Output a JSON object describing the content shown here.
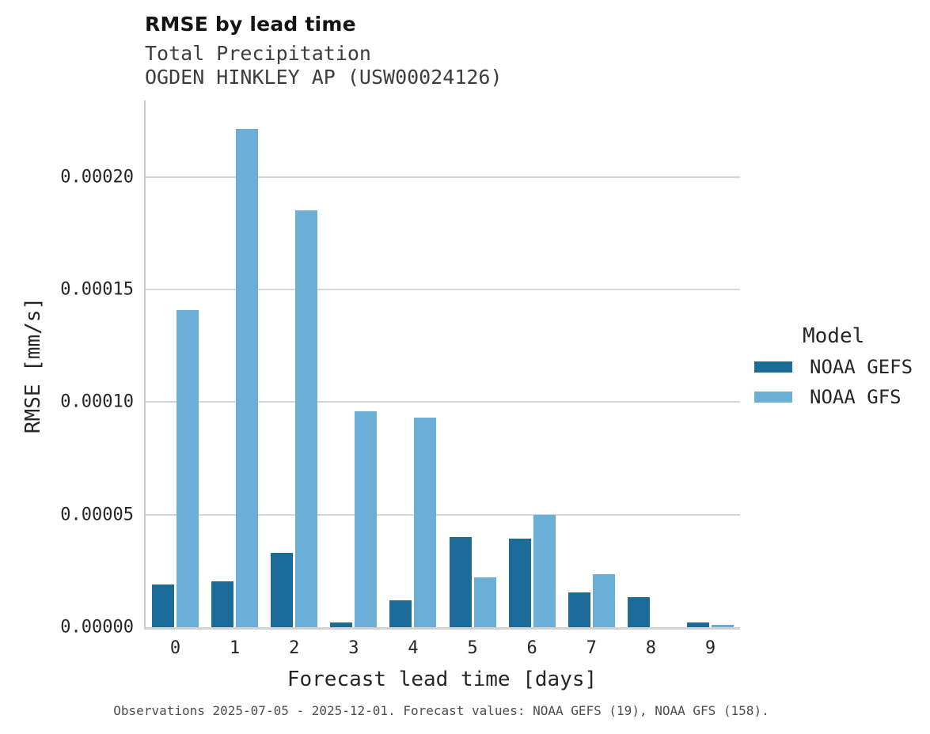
{
  "chart_data": {
    "type": "bar",
    "title": "RMSE by lead time",
    "subtitle1": "Total Precipitation",
    "subtitle2": "OGDEN HINKLEY AP (USW00024126)",
    "xlabel": "Forecast lead time [days]",
    "ylabel": "RMSE [mm/s]",
    "legend_title": "Model",
    "legend_position": "right",
    "grid": true,
    "categories": [
      "0",
      "1",
      "2",
      "3",
      "4",
      "5",
      "6",
      "7",
      "8",
      "9"
    ],
    "series": [
      {
        "name": "NOAA GEFS",
        "color": "#1d6b99",
        "values": [
          1.9e-05,
          2.05e-05,
          3.3e-05,
          2e-06,
          1.2e-05,
          4e-05,
          3.95e-05,
          1.55e-05,
          1.32e-05,
          2e-06
        ]
      },
      {
        "name": "NOAA GFS",
        "color": "#6cafd6",
        "values": [
          0.000141,
          0.0002215,
          0.000185,
          9.6e-05,
          9.3e-05,
          2.2e-05,
          5e-05,
          2.35e-05,
          0,
          1e-06
        ]
      }
    ],
    "ylim": [
      0,
      0.000234
    ],
    "yticks": [
      {
        "value": 0,
        "label": "0.00000"
      },
      {
        "value": 5e-05,
        "label": "0.00005"
      },
      {
        "value": 0.0001,
        "label": "0.00010"
      },
      {
        "value": 0.00015,
        "label": "0.00015"
      },
      {
        "value": 0.0002,
        "label": "0.00020"
      }
    ]
  },
  "caption": "Observations 2025-07-05 - 2025-12-01. Forecast values: NOAA GEFS (19), NOAA GFS (158)."
}
